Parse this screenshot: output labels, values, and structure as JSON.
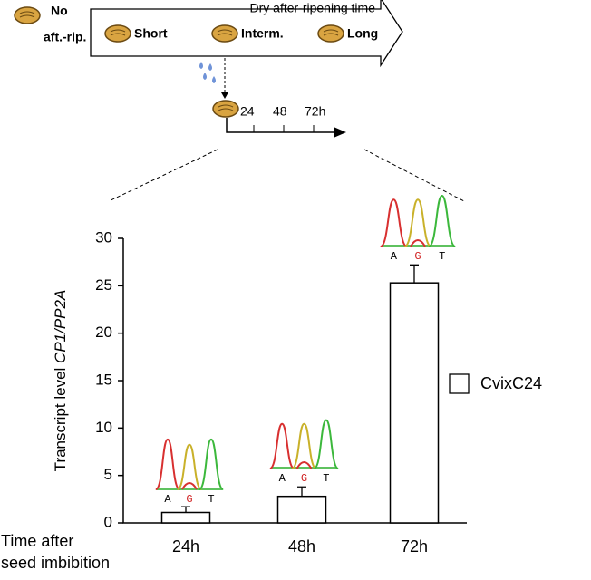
{
  "diagram": {
    "start_label": [
      "No",
      "aft.-rip."
    ],
    "stages": [
      "Short",
      "Interm.",
      "Long"
    ],
    "arrow_label": "Dry after-ripening time",
    "timeline_labels": [
      "24",
      "48",
      "72h"
    ]
  },
  "chart_data": {
    "type": "bar",
    "y_label_parts": [
      "Transcript level ",
      "CP1/PP2A"
    ],
    "x_label": [
      "Time after",
      "seed imbibition"
    ],
    "categories": [
      "24h",
      "48h",
      "72h"
    ],
    "series": [
      {
        "name": "CvixC24",
        "color": "#ffffff",
        "values": [
          1.1,
          2.8,
          25.3
        ],
        "errors": [
          0.6,
          1.0,
          1.9
        ]
      }
    ],
    "ylim": [
      0,
      30
    ],
    "yticks": [
      0,
      5,
      10,
      15,
      20,
      25,
      30
    ],
    "legend": "right"
  },
  "chromatograms": [
    {
      "bases": [
        "A",
        "G",
        "T"
      ]
    },
    {
      "bases": [
        "A",
        "G",
        "T"
      ]
    },
    {
      "bases": [
        "A",
        "G",
        "T"
      ]
    }
  ]
}
